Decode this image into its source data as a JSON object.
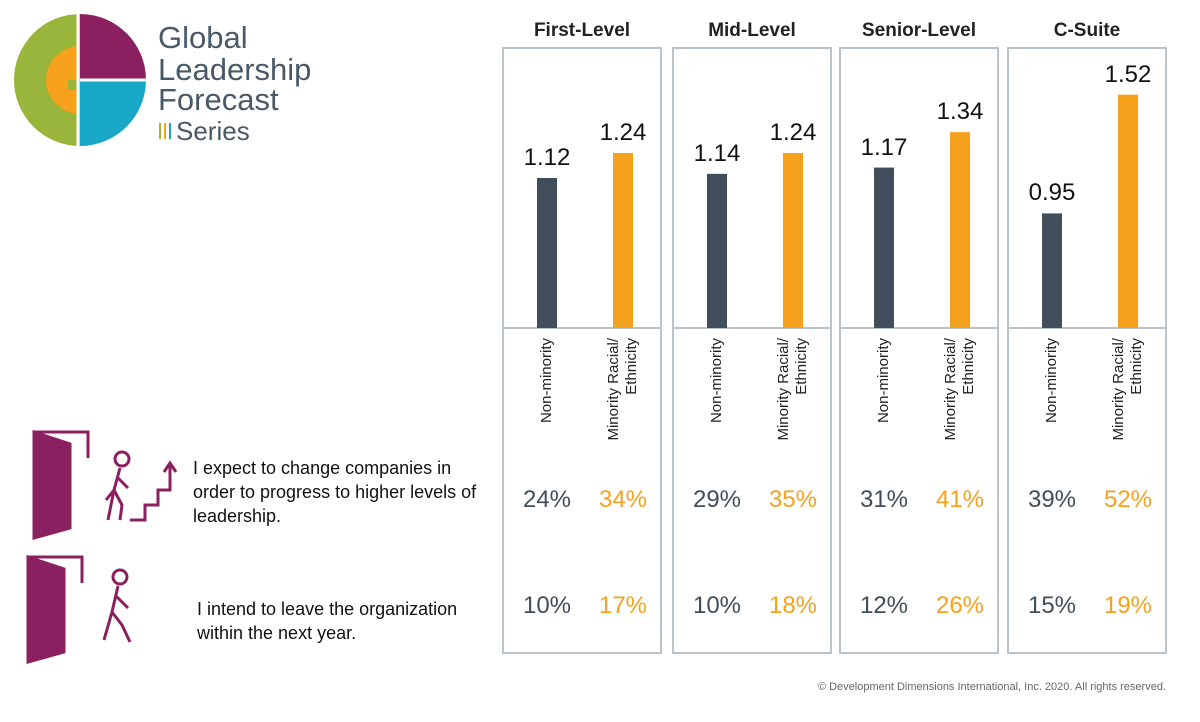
{
  "logo": {
    "lines": [
      "Global",
      "Leadership",
      "Forecast",
      "Series"
    ]
  },
  "statements": [
    "I expect to change companies in order to progress to higher levels of leadership.",
    "I intend to leave the organization within the next year."
  ],
  "chart_data": [
    {
      "type": "bar",
      "title": "First-Level",
      "categories": [
        "Non-minority",
        "Minority Racial/ Ethnicity"
      ],
      "values": [
        1.12,
        1.24
      ],
      "colors": [
        "#3f4e5a",
        "#f5a11c"
      ],
      "ylim": [
        0.4,
        1.6
      ],
      "statement_values": [
        [
          24,
          34
        ],
        [
          10,
          17
        ]
      ],
      "statement_value_labels": [
        [
          "24%",
          "34%"
        ],
        [
          "10%",
          "17%"
        ]
      ]
    },
    {
      "type": "bar",
      "title": "Mid-Level",
      "categories": [
        "Non-minority",
        "Minority Racial/ Ethnicity"
      ],
      "values": [
        1.14,
        1.24
      ],
      "colors": [
        "#3f4e5a",
        "#f5a11c"
      ],
      "ylim": [
        0.4,
        1.6
      ],
      "statement_values": [
        [
          29,
          35
        ],
        [
          10,
          18
        ]
      ],
      "statement_value_labels": [
        [
          "29%",
          "35%"
        ],
        [
          "10%",
          "18%"
        ]
      ]
    },
    {
      "type": "bar",
      "title": "Senior-Level",
      "categories": [
        "Non-minority",
        "Minority Racial/ Ethnicity"
      ],
      "values": [
        1.17,
        1.34
      ],
      "colors": [
        "#3f4e5a",
        "#f5a11c"
      ],
      "ylim": [
        0.4,
        1.6
      ],
      "statement_values": [
        [
          31,
          41
        ],
        [
          12,
          26
        ]
      ],
      "statement_value_labels": [
        [
          "31%",
          "41%"
        ],
        [
          "12%",
          "26%"
        ]
      ]
    },
    {
      "type": "bar",
      "title": "C-Suite",
      "categories": [
        "Non-minority",
        "Minority Racial/ Ethnicity"
      ],
      "values": [
        0.95,
        1.52
      ],
      "colors": [
        "#3f4e5a",
        "#f5a11c"
      ],
      "ylim": [
        0.4,
        1.6
      ],
      "statement_values": [
        [
          39,
          52
        ],
        [
          15,
          19
        ]
      ],
      "statement_value_labels": [
        [
          "39%",
          "52%"
        ],
        [
          "15%",
          "19%"
        ]
      ]
    }
  ],
  "copyright": "© Development Dimensions International, Inc. 2020. All rights reserved."
}
